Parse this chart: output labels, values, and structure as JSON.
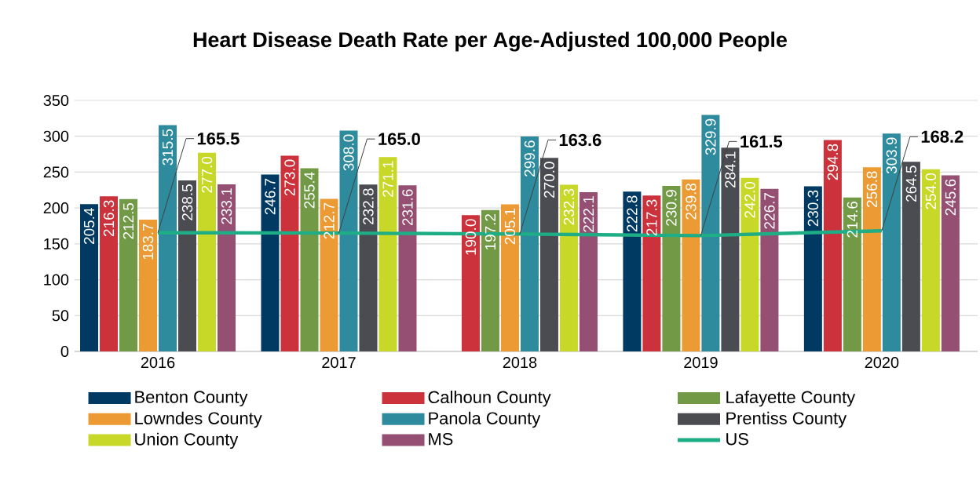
{
  "chart_data": {
    "type": "bar",
    "title": "Heart Disease Death Rate per Age-Adjusted 100,000 People",
    "categories": [
      "2016",
      "2017",
      "2018",
      "2019",
      "2020"
    ],
    "series": [
      {
        "name": "Benton County",
        "color": "#003a63",
        "values": [
          205.4,
          246.7,
          null,
          222.8,
          230.3
        ],
        "value_labels": [
          "205.4",
          "246.7",
          null,
          "222.8",
          "230.3"
        ]
      },
      {
        "name": "Calhoun County",
        "color": "#cc323b",
        "values": [
          216.3,
          273.0,
          190.0,
          217.3,
          294.8
        ],
        "value_labels": [
          "216.3",
          "273.0",
          "190.0",
          "217.3",
          "294.8"
        ]
      },
      {
        "name": "Lafayette County",
        "color": "#729946",
        "values": [
          212.5,
          255.4,
          197.2,
          230.9,
          214.6
        ],
        "value_labels": [
          "212.5",
          "255.4",
          "197.2",
          "230.9",
          "214.6"
        ]
      },
      {
        "name": "Lowndes County",
        "color": "#ec9a33",
        "values": [
          183.7,
          212.7,
          205.1,
          239.8,
          256.8
        ],
        "value_labels": [
          "183.7",
          "212.7",
          "205.1",
          "239.8",
          "256.8"
        ]
      },
      {
        "name": "Panola County",
        "color": "#2e8b9e",
        "values": [
          315.5,
          308.0,
          299.6,
          329.9,
          303.9
        ],
        "value_labels": [
          "315.5",
          "308.0",
          "299.6",
          "329.9",
          "303.9"
        ]
      },
      {
        "name": "Prentiss County",
        "color": "#4a4c51",
        "values": [
          238.5,
          232.8,
          270.0,
          284.1,
          264.5
        ],
        "value_labels": [
          "238.5",
          "232.8",
          "270.0",
          "284.1",
          "264.5"
        ]
      },
      {
        "name": "Union County",
        "color": "#c8d829",
        "values": [
          277.0,
          271.1,
          232.3,
          242.0,
          254.0
        ],
        "value_labels": [
          "277.0",
          "271.1",
          "232.3",
          "242.0",
          "254.0"
        ]
      },
      {
        "name": "MS",
        "color": "#954f72",
        "values": [
          233.1,
          231.6,
          222.1,
          226.7,
          245.6
        ],
        "value_labels": [
          "233.1",
          "231.6",
          "222.1",
          "226.7",
          "245.6"
        ]
      },
      {
        "name": "US",
        "type": "line",
        "color": "#1fad85",
        "marker": "none",
        "values": [
          165.5,
          165.0,
          163.6,
          161.5,
          168.2
        ],
        "value_labels": [
          "165.5",
          "165.0",
          "163.6",
          "161.5",
          "168.2"
        ]
      }
    ],
    "ylim": [
      0,
      350
    ],
    "yticks": [
      0,
      50,
      100,
      150,
      200,
      250,
      300,
      350
    ],
    "grid": "y",
    "legend": "bottom"
  }
}
